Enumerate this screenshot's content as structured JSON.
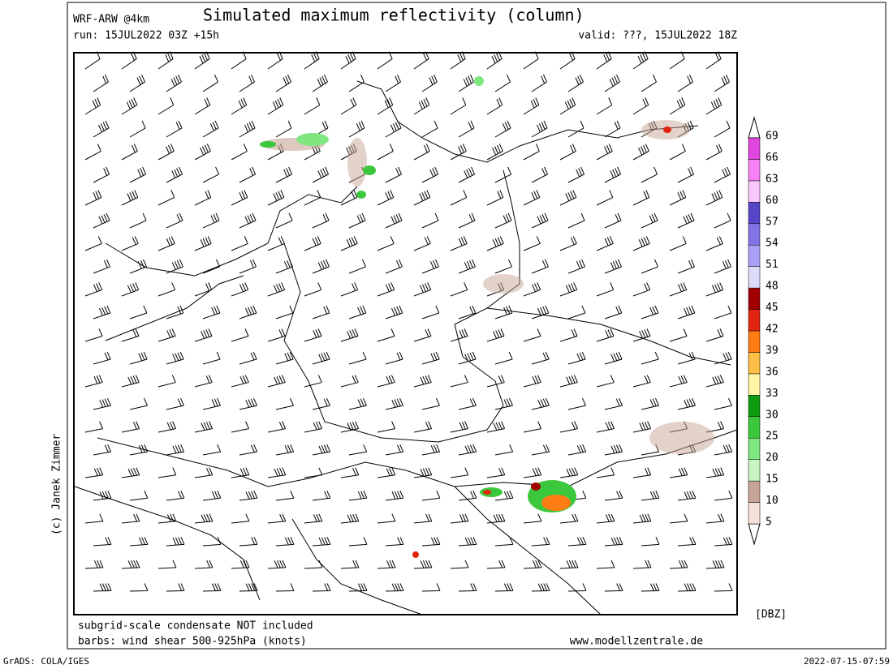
{
  "header": {
    "model": "WRF-ARW @4km",
    "title": "Simulated maximum reflectivity (column)",
    "run": "run: 15JUL2022 03Z +15h",
    "valid": "valid: ???, 15JUL2022 18Z"
  },
  "footer": {
    "note": "subgrid-scale condensate NOT included",
    "barbs": "barbs: wind shear 500-925hPa (knots)",
    "site": "www.modellzentrale.de",
    "copyright": "(c) Janek Zimmer",
    "software": "GrADS: COLA/IGES",
    "timestamp": "2022-07-15-07:59"
  },
  "colorbar": {
    "unit": "[DBZ]",
    "levels": [
      5,
      10,
      15,
      20,
      25,
      30,
      33,
      36,
      39,
      42,
      45,
      48,
      51,
      54,
      57,
      60,
      63,
      66,
      69
    ],
    "colors": [
      "#f5e2da",
      "#c8a596",
      "#c8f5c0",
      "#80e680",
      "#3cc83c",
      "#0f9b0f",
      "#fff5a5",
      "#ffbe46",
      "#ff7d14",
      "#e1230f",
      "#a00000",
      "#dcdcfa",
      "#aaa0f5",
      "#8273e6",
      "#5546c8",
      "#fac8fa",
      "#f582f5",
      "#e146e1",
      "#a000c3"
    ]
  }
}
